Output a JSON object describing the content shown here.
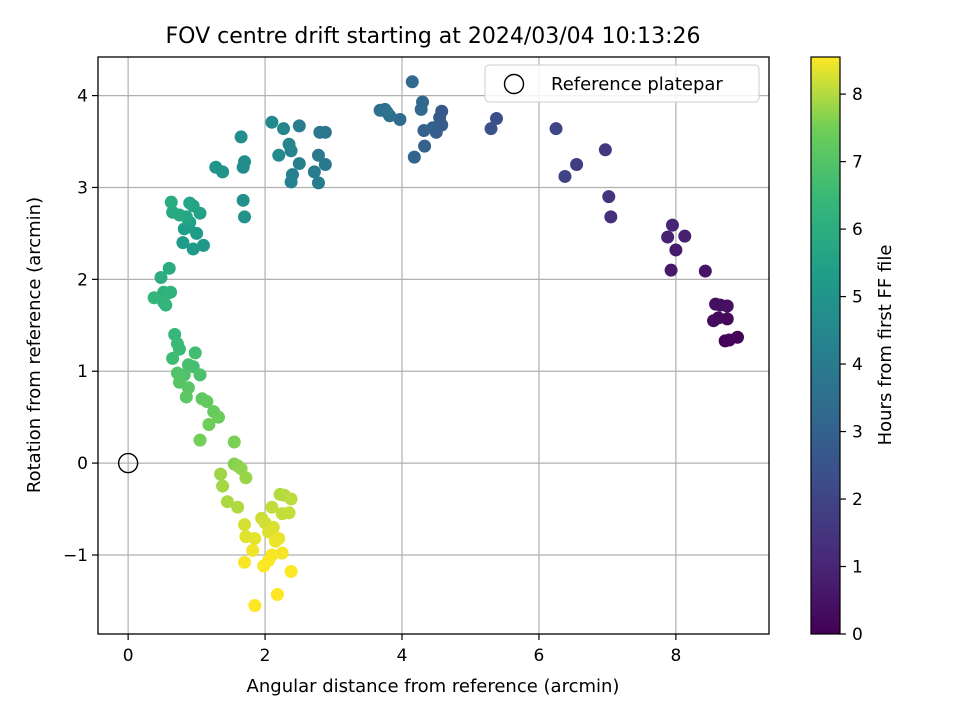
{
  "chart_data": {
    "type": "scatter",
    "title": "FOV centre drift starting at 2024/03/04 10:13:26",
    "xlabel": "Angular distance from reference (arcmin)",
    "ylabel": "Rotation from reference (arcmin)",
    "xlim": [
      -0.44,
      9.36
    ],
    "ylim": [
      -1.86,
      4.42
    ],
    "xticks": [
      0,
      2,
      4,
      6,
      8
    ],
    "yticks": [
      -1,
      0,
      1,
      2,
      3,
      4
    ],
    "xtick_labels": [
      "0",
      "2",
      "4",
      "6",
      "8"
    ],
    "ytick_labels": [
      "−1",
      "0",
      "1",
      "2",
      "3",
      "4"
    ],
    "grid": true,
    "legend": {
      "placement": "top-right",
      "entries": [
        "Reference platepar"
      ]
    },
    "reference_point": {
      "x": 0,
      "y": 0,
      "label": "Reference platepar"
    },
    "colorbar": {
      "label": "Hours from first FF file",
      "range": [
        0,
        8.55
      ],
      "ticks": [
        0,
        1,
        2,
        3,
        4,
        5,
        6,
        7,
        8
      ],
      "tick_labels": [
        "0",
        "1",
        "2",
        "3",
        "4",
        "5",
        "6",
        "7",
        "8"
      ],
      "colormap": "viridis"
    },
    "points": [
      {
        "x": 8.72,
        "y": 1.33,
        "t": 0.05
      },
      {
        "x": 8.9,
        "y": 1.37,
        "t": 0.1
      },
      {
        "x": 8.78,
        "y": 1.34,
        "t": 0.15
      },
      {
        "x": 8.75,
        "y": 1.57,
        "t": 0.2
      },
      {
        "x": 8.62,
        "y": 1.58,
        "t": 0.25
      },
      {
        "x": 8.55,
        "y": 1.55,
        "t": 0.3
      },
      {
        "x": 8.65,
        "y": 1.72,
        "t": 0.35
      },
      {
        "x": 8.58,
        "y": 1.73,
        "t": 0.4
      },
      {
        "x": 8.75,
        "y": 1.71,
        "t": 0.45
      },
      {
        "x": 8.43,
        "y": 2.09,
        "t": 0.55
      },
      {
        "x": 7.93,
        "y": 2.1,
        "t": 0.65
      },
      {
        "x": 8.0,
        "y": 2.32,
        "t": 0.75
      },
      {
        "x": 8.13,
        "y": 2.47,
        "t": 0.85
      },
      {
        "x": 7.88,
        "y": 2.46,
        "t": 0.9
      },
      {
        "x": 7.95,
        "y": 2.59,
        "t": 0.95
      },
      {
        "x": 7.05,
        "y": 2.68,
        "t": 1.3
      },
      {
        "x": 7.02,
        "y": 2.9,
        "t": 1.45
      },
      {
        "x": 6.97,
        "y": 3.41,
        "t": 1.6
      },
      {
        "x": 6.55,
        "y": 3.25,
        "t": 1.75
      },
      {
        "x": 6.38,
        "y": 3.12,
        "t": 1.9
      },
      {
        "x": 6.25,
        "y": 3.64,
        "t": 2.05
      },
      {
        "x": 5.38,
        "y": 3.75,
        "t": 2.3
      },
      {
        "x": 5.3,
        "y": 3.64,
        "t": 2.45
      },
      {
        "x": 4.58,
        "y": 3.83,
        "t": 2.65
      },
      {
        "x": 4.55,
        "y": 3.76,
        "t": 2.72
      },
      {
        "x": 4.58,
        "y": 3.68,
        "t": 2.8
      },
      {
        "x": 4.5,
        "y": 3.6,
        "t": 2.86
      },
      {
        "x": 4.45,
        "y": 3.65,
        "t": 2.92
      },
      {
        "x": 4.32,
        "y": 3.62,
        "t": 2.98
      },
      {
        "x": 4.33,
        "y": 3.45,
        "t": 3.04
      },
      {
        "x": 4.18,
        "y": 3.33,
        "t": 3.1
      },
      {
        "x": 4.3,
        "y": 3.93,
        "t": 3.16
      },
      {
        "x": 4.28,
        "y": 3.85,
        "t": 3.22
      },
      {
        "x": 4.15,
        "y": 4.15,
        "t": 3.3
      },
      {
        "x": 3.97,
        "y": 3.74,
        "t": 3.38
      },
      {
        "x": 3.82,
        "y": 3.78,
        "t": 3.45
      },
      {
        "x": 3.75,
        "y": 3.85,
        "t": 3.52
      },
      {
        "x": 3.68,
        "y": 3.84,
        "t": 3.58
      },
      {
        "x": 3.78,
        "y": 3.82,
        "t": 3.64
      },
      {
        "x": 2.88,
        "y": 3.6,
        "t": 3.75
      },
      {
        "x": 2.8,
        "y": 3.6,
        "t": 3.81
      },
      {
        "x": 2.88,
        "y": 3.25,
        "t": 3.87
      },
      {
        "x": 2.78,
        "y": 3.35,
        "t": 3.93
      },
      {
        "x": 2.72,
        "y": 3.17,
        "t": 3.99
      },
      {
        "x": 2.78,
        "y": 3.05,
        "t": 4.05
      },
      {
        "x": 2.5,
        "y": 3.67,
        "t": 4.11
      },
      {
        "x": 2.5,
        "y": 3.26,
        "t": 4.17
      },
      {
        "x": 2.4,
        "y": 3.14,
        "t": 4.23
      },
      {
        "x": 2.38,
        "y": 3.06,
        "t": 4.29
      },
      {
        "x": 2.38,
        "y": 3.4,
        "t": 4.35
      },
      {
        "x": 2.35,
        "y": 3.47,
        "t": 4.41
      },
      {
        "x": 2.27,
        "y": 3.64,
        "t": 4.47
      },
      {
        "x": 2.1,
        "y": 3.71,
        "t": 4.53
      },
      {
        "x": 2.2,
        "y": 3.35,
        "t": 4.59
      },
      {
        "x": 1.68,
        "y": 3.22,
        "t": 4.65
      },
      {
        "x": 1.7,
        "y": 3.28,
        "t": 4.71
      },
      {
        "x": 1.65,
        "y": 3.55,
        "t": 4.77
      },
      {
        "x": 1.68,
        "y": 2.86,
        "t": 4.83
      },
      {
        "x": 1.7,
        "y": 2.68,
        "t": 4.89
      },
      {
        "x": 1.38,
        "y": 3.17,
        "t": 4.95
      },
      {
        "x": 1.28,
        "y": 3.22,
        "t": 5.01
      },
      {
        "x": 1.1,
        "y": 2.37,
        "t": 5.1
      },
      {
        "x": 0.95,
        "y": 2.33,
        "t": 5.16
      },
      {
        "x": 0.8,
        "y": 2.4,
        "t": 5.22
      },
      {
        "x": 1.0,
        "y": 2.5,
        "t": 5.28
      },
      {
        "x": 0.88,
        "y": 2.57,
        "t": 5.34
      },
      {
        "x": 0.82,
        "y": 2.55,
        "t": 5.4
      },
      {
        "x": 0.9,
        "y": 2.62,
        "t": 5.46
      },
      {
        "x": 1.05,
        "y": 2.72,
        "t": 5.52
      },
      {
        "x": 0.95,
        "y": 2.8,
        "t": 5.58
      },
      {
        "x": 0.9,
        "y": 2.83,
        "t": 5.64
      },
      {
        "x": 0.85,
        "y": 2.68,
        "t": 5.7
      },
      {
        "x": 0.75,
        "y": 2.7,
        "t": 5.76
      },
      {
        "x": 0.65,
        "y": 2.73,
        "t": 5.82
      },
      {
        "x": 0.63,
        "y": 2.84,
        "t": 5.88
      },
      {
        "x": 0.6,
        "y": 2.12,
        "t": 5.94
      },
      {
        "x": 0.48,
        "y": 2.02,
        "t": 6.0
      },
      {
        "x": 0.52,
        "y": 1.86,
        "t": 6.06
      },
      {
        "x": 0.58,
        "y": 1.85,
        "t": 6.12
      },
      {
        "x": 0.62,
        "y": 1.86,
        "t": 6.18
      },
      {
        "x": 0.55,
        "y": 1.72,
        "t": 6.24
      },
      {
        "x": 0.52,
        "y": 1.75,
        "t": 6.3
      },
      {
        "x": 0.38,
        "y": 1.8,
        "t": 6.36
      },
      {
        "x": 0.68,
        "y": 1.4,
        "t": 6.42
      },
      {
        "x": 0.72,
        "y": 1.3,
        "t": 6.48
      },
      {
        "x": 0.75,
        "y": 1.24,
        "t": 6.54
      },
      {
        "x": 0.65,
        "y": 1.14,
        "t": 6.6
      },
      {
        "x": 0.98,
        "y": 1.2,
        "t": 6.66
      },
      {
        "x": 0.95,
        "y": 1.05,
        "t": 6.72
      },
      {
        "x": 0.88,
        "y": 1.07,
        "t": 6.78
      },
      {
        "x": 1.05,
        "y": 0.96,
        "t": 6.84
      },
      {
        "x": 0.82,
        "y": 0.96,
        "t": 6.9
      },
      {
        "x": 0.72,
        "y": 0.98,
        "t": 6.96
      },
      {
        "x": 0.75,
        "y": 0.88,
        "t": 7.02
      },
      {
        "x": 0.88,
        "y": 0.82,
        "t": 7.08
      },
      {
        "x": 0.85,
        "y": 0.72,
        "t": 7.14
      },
      {
        "x": 1.08,
        "y": 0.7,
        "t": 7.2
      },
      {
        "x": 1.15,
        "y": 0.67,
        "t": 7.26
      },
      {
        "x": 1.25,
        "y": 0.56,
        "t": 7.32
      },
      {
        "x": 1.32,
        "y": 0.5,
        "t": 7.38
      },
      {
        "x": 1.18,
        "y": 0.42,
        "t": 7.44
      },
      {
        "x": 1.05,
        "y": 0.25,
        "t": 7.5
      },
      {
        "x": 1.55,
        "y": 0.23,
        "t": 7.56
      },
      {
        "x": 1.55,
        "y": -0.01,
        "t": 7.62
      },
      {
        "x": 1.6,
        "y": -0.03,
        "t": 7.68
      },
      {
        "x": 1.65,
        "y": -0.06,
        "t": 7.74
      },
      {
        "x": 1.72,
        "y": -0.16,
        "t": 7.8
      },
      {
        "x": 1.35,
        "y": -0.12,
        "t": 7.84
      },
      {
        "x": 1.38,
        "y": -0.25,
        "t": 7.88
      },
      {
        "x": 1.45,
        "y": -0.42,
        "t": 7.92
      },
      {
        "x": 1.6,
        "y": -0.48,
        "t": 7.96
      },
      {
        "x": 2.22,
        "y": -0.34,
        "t": 8.0
      },
      {
        "x": 2.28,
        "y": -0.35,
        "t": 8.03
      },
      {
        "x": 2.38,
        "y": -0.39,
        "t": 8.06
      },
      {
        "x": 2.1,
        "y": -0.48,
        "t": 8.09
      },
      {
        "x": 2.25,
        "y": -0.55,
        "t": 8.12
      },
      {
        "x": 2.35,
        "y": -0.54,
        "t": 8.15
      },
      {
        "x": 1.95,
        "y": -0.6,
        "t": 8.18
      },
      {
        "x": 2.0,
        "y": -0.65,
        "t": 8.21
      },
      {
        "x": 1.7,
        "y": -0.67,
        "t": 8.24
      },
      {
        "x": 2.12,
        "y": -0.7,
        "t": 8.27
      },
      {
        "x": 2.05,
        "y": -0.75,
        "t": 8.3
      },
      {
        "x": 1.72,
        "y": -0.8,
        "t": 8.33
      },
      {
        "x": 1.85,
        "y": -0.82,
        "t": 8.36
      },
      {
        "x": 2.2,
        "y": -0.82,
        "t": 8.39
      },
      {
        "x": 2.15,
        "y": -0.85,
        "t": 8.42
      },
      {
        "x": 1.82,
        "y": -0.95,
        "t": 8.45
      },
      {
        "x": 2.25,
        "y": -0.98,
        "t": 8.48
      },
      {
        "x": 2.1,
        "y": -1.0,
        "t": 8.5
      },
      {
        "x": 1.7,
        "y": -1.08,
        "t": 8.52
      },
      {
        "x": 1.98,
        "y": -1.12,
        "t": 8.53
      },
      {
        "x": 2.05,
        "y": -1.06,
        "t": 8.54
      },
      {
        "x": 2.38,
        "y": -1.18,
        "t": 8.54
      },
      {
        "x": 2.18,
        "y": -1.43,
        "t": 8.55
      },
      {
        "x": 1.85,
        "y": -1.55,
        "t": 8.55
      }
    ]
  }
}
